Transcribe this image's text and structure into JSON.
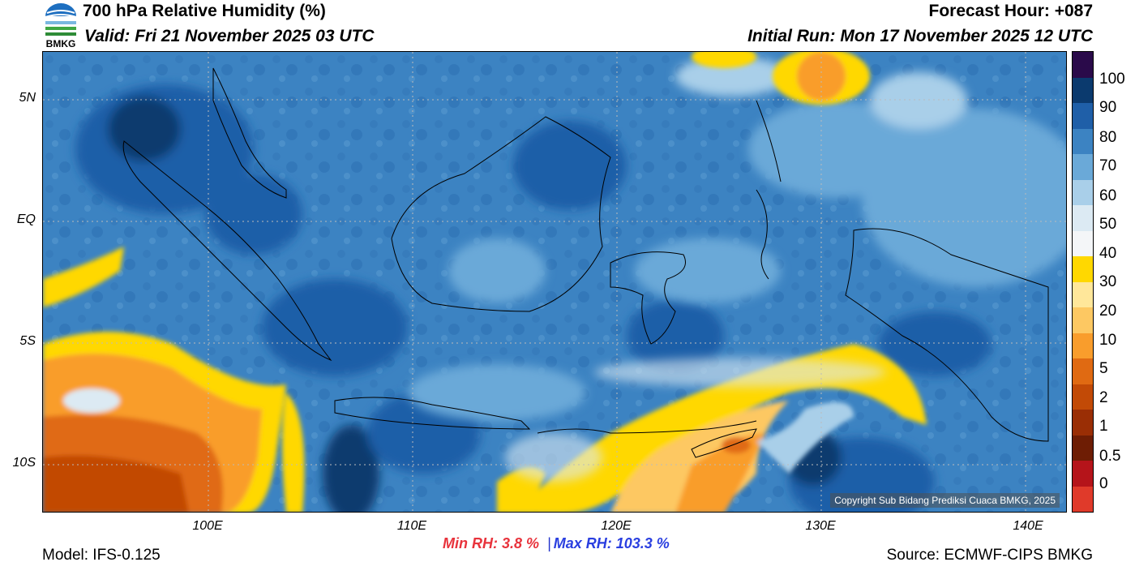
{
  "header": {
    "title": "700 hPa Relative Humidity (%)",
    "valid": "Valid: Fri 21 November 2025 03 UTC",
    "forecast_hour": "Forecast Hour: +087",
    "initial_run": "Initial Run: Mon 17 November 2025 12 UTC",
    "logo_text": "BMKG"
  },
  "map": {
    "lat_labels": [
      "5N",
      "EQ",
      "5S",
      "10S"
    ],
    "lon_labels": [
      "100E",
      "110E",
      "120E",
      "130E",
      "140E"
    ],
    "copyright": "Copyright Sub Bidang Prediksi Cuaca BMKG, 2025"
  },
  "colorbar": {
    "labels": [
      "100",
      "90",
      "80",
      "70",
      "60",
      "50",
      "40",
      "30",
      "20",
      "10",
      "5",
      "2",
      "1",
      "0.5",
      "0"
    ],
    "colors": [
      "#2a0a4a",
      "#0b3a6e",
      "#1f5fa8",
      "#3c83c2",
      "#6aa9d8",
      "#a9cfe9",
      "#dceaf3",
      "#f4f6f8",
      "#ffd800",
      "#ffe79a",
      "#fdc862",
      "#f99d2c",
      "#e06a12",
      "#c24a06",
      "#9a2e05",
      "#6e1d04",
      "#b5141a",
      "#e03a2a"
    ]
  },
  "stats": {
    "min_rh": "Min RH:   3.8 %",
    "separator": "|",
    "max_rh": "Max RH: 103.3 %"
  },
  "footer": {
    "model": "Model: IFS-0.125",
    "source": "Source: ECMWF-CIPS BMKG"
  }
}
